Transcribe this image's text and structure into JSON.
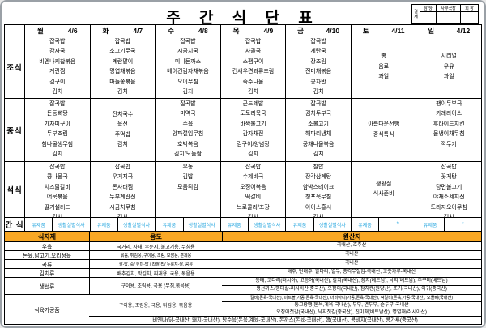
{
  "title": "주 간 식 단 표",
  "approval": {
    "stamp": "결재",
    "headers": [
      "담 당",
      "사무국장",
      "회 장"
    ]
  },
  "days": [
    {
      "name": "월",
      "date": "4/6"
    },
    {
      "name": "화",
      "date": "4/7"
    },
    {
      "name": "수",
      "date": "4/8"
    },
    {
      "name": "목",
      "date": "4/9"
    },
    {
      "name": "금",
      "date": "4/10"
    },
    {
      "name": "토",
      "date": "4/11"
    },
    {
      "name": "일",
      "date": "4/12"
    }
  ],
  "meals": [
    {
      "label": "조식",
      "cells": [
        {
          "items": [
            "잡곡밥",
            "감자국",
            "비엔나케찹볶음",
            "계란찜",
            "김구이",
            "김치"
          ]
        },
        {
          "items": [
            "잡곡밥",
            "소고기무국",
            "계란말이",
            "명엽채볶음",
            "마늘쫑볶음",
            "김치"
          ]
        },
        {
          "items": [
            "잡곡밥",
            "시금치국",
            "미니돈까스",
            "베이컨감자채볶음",
            "오이무침",
            "김치"
          ]
        },
        {
          "items": [
            "잡곡밥",
            "사골국",
            "스팸구이",
            "건새우견과류조림",
            "숙주나물",
            "김치"
          ]
        },
        {
          "items": [
            "잡곡밥",
            "계란국",
            "장조림",
            "진미채볶음",
            "콩자반",
            "김치"
          ]
        },
        {
          "items": [
            "빵",
            "음료",
            "과일"
          ],
          "center": true
        },
        {
          "items": [
            "시리얼",
            "우유",
            "과일"
          ],
          "center": true
        }
      ]
    },
    {
      "label": "중식",
      "cells": [
        {
          "items": [
            "잡곡밥",
            "돈등뼈탕",
            "가자미구이",
            "두부조림",
            "참나물생무침",
            "김치"
          ]
        },
        {
          "items": [
            "잔치국수",
            "육전",
            "주먹밥",
            "김치"
          ],
          "center": true
        },
        {
          "items": [
            "잡곡밥",
            "미역국",
            "수육",
            "양파절임무침",
            "호박볶음",
            "김치/모둠쌈"
          ]
        },
        {
          "items": [
            "곤드레밥",
            "도토리묵국",
            "바싹불고기",
            "감자채전",
            "김구이/양념장",
            "김치"
          ]
        },
        {
          "items": [
            "잡곡밥",
            "김치두부국",
            "소불고기",
            "해파리냉채",
            "궁채나물볶음",
            "김치"
          ]
        },
        {
          "items": [
            "아름다운선행",
            "중식특식"
          ],
          "center": true
        },
        {
          "items": [
            "팽이두부국",
            "카레라이스",
            "후라이드치킨",
            "물냉이채무침",
            "깍두기"
          ]
        }
      ]
    },
    {
      "label": "석식",
      "cells": [
        {
          "items": [
            "잡곡밥",
            "콩나물국",
            "치즈닭갈비",
            "어묵볶음",
            "딸기샐러드",
            "김치"
          ]
        },
        {
          "items": [
            "잡곡밥",
            "우거지국",
            "돈사태찜",
            "두부계란전",
            "시금치무침",
            "김치"
          ]
        },
        {
          "items": [
            "우동",
            "김밥",
            "모둠튀김"
          ]
        },
        {
          "items": [
            "잡곡밥",
            "수제비국",
            "오징어볶음",
            "떡갈비",
            "브로콜리/초장",
            "김치"
          ]
        },
        {
          "items": [
            "찰밥",
            "장각삼계탕",
            "함박스테이크",
            "청포묵무침",
            "아이스홍시",
            "김치"
          ]
        },
        {
          "items": [
            "생활실",
            "식사준비"
          ],
          "center": true
        },
        {
          "items": [
            "잡곡밥",
            "꽃게탕",
            "당면불고기",
            "야채소세지전",
            "도라지오이무침",
            "김치"
          ]
        }
      ]
    }
  ],
  "snack": {
    "label": "간 식",
    "cells": [
      {
        "left": "유제품",
        "right": "생활실별식사"
      },
      {
        "left": "유제품",
        "right": "생활실별식사"
      },
      {
        "left": "유제품",
        "right": "생활실별식사"
      },
      {
        "left": "유제품",
        "right": "생활실별식사"
      },
      {
        "left": "유제품",
        "right": "생활실별식사"
      },
      {
        "left": "유제품",
        "right": "*"
      },
      {
        "left": "유제품",
        "right": "*"
      }
    ]
  },
  "ingredients": {
    "headers": [
      "식자재",
      "용도",
      "원산지"
    ],
    "rows": [
      {
        "name": "우육",
        "use": "국거리, 사태, 우둔지, 불고기용, 무침용",
        "origin": [
          "국내산, 호주산"
        ]
      },
      {
        "name": "돈육,닭고기,오리정육",
        "use": "볶음, 튀김용, 구이용, 조림, 보쌈용, 훈제용",
        "use_small": true,
        "origin": [
          "국내산"
        ]
      },
      {
        "name": "곡류",
        "use": "쌀-밥, 죽/ 현미-밥 / 찹쌀-밥/ 누룽지-쌀, 콩류",
        "use_small": true,
        "origin": [
          "국내산"
        ]
      },
      {
        "name": "김치류",
        "use": "배추김치, 막김치, 찌개용, 국용, 볶음용",
        "origin": [
          "배추, 단배추, 알타리, 열무, 총각무절임-국내산, 고춧가루-국내산"
        ]
      },
      {
        "name": "생선류",
        "use": "구이용, 조림용, 국용 (무침,볶음용)",
        "origin": [
          "동태, 코다리(러시아), 고등어(국내산), 갈치(국내산), 꽁치(베트남), 낙지(베트남), 주꾸미(베트남)",
          "생선까스(명태살-러시아산,중국산), 오징어(국내산), 참치캔(원양산), 조기(국내산), 아귀(중국산)"
        ]
      },
      {
        "name": "식육가공품",
        "use": "구이용, 조림용, 국용, 튀김용, 볶음용",
        "origin": [
          "갈비(돈육-국내산), 미트볼(가공,돈육-국내산), 너비아니(가공,돈육-국내산), 떡갈비(돈육,가공-국내산), 오돌뼈(국내산)",
          "동그랑땡(돈육,계육-국내산), 두부, 연두부, 순두부-국내산",
          "오징어젓갈(국내산), 낙지젓갈(중국산), 진미채(베트남산), 명엽채(러시아산)"
        ],
        "origin_first_tiny": true,
        "footer": "비엔나(닭-국내산, 돼지-국내산), 탕수육(돈육,계육-국내산), 돈까스(돈육-국내산), 햄(국내산), 콩비지(국내산), 콩가루(중국산)"
      }
    ]
  },
  "colors": {
    "snack_text": "#2aa8e0",
    "header_bg": "#f9a825",
    "roofs": [
      "#d9534f",
      "#4a7fd4",
      "#e8a33d",
      "#c45fa0"
    ],
    "tree": "#4f9d4f",
    "trunk": "#7a4f21",
    "wall": "#f3e2c7"
  }
}
